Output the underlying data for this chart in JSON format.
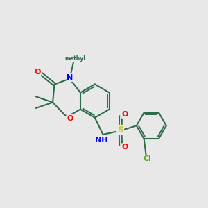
{
  "background_color": "#e8e8e8",
  "bond_color": "#2d6b4a",
  "atom_colors": {
    "O": "#ff0000",
    "N": "#0000ff",
    "S": "#cccc00",
    "Cl": "#55aa00",
    "C": "#2d6b4a"
  },
  "figsize": [
    3.0,
    3.0
  ],
  "dpi": 100
}
